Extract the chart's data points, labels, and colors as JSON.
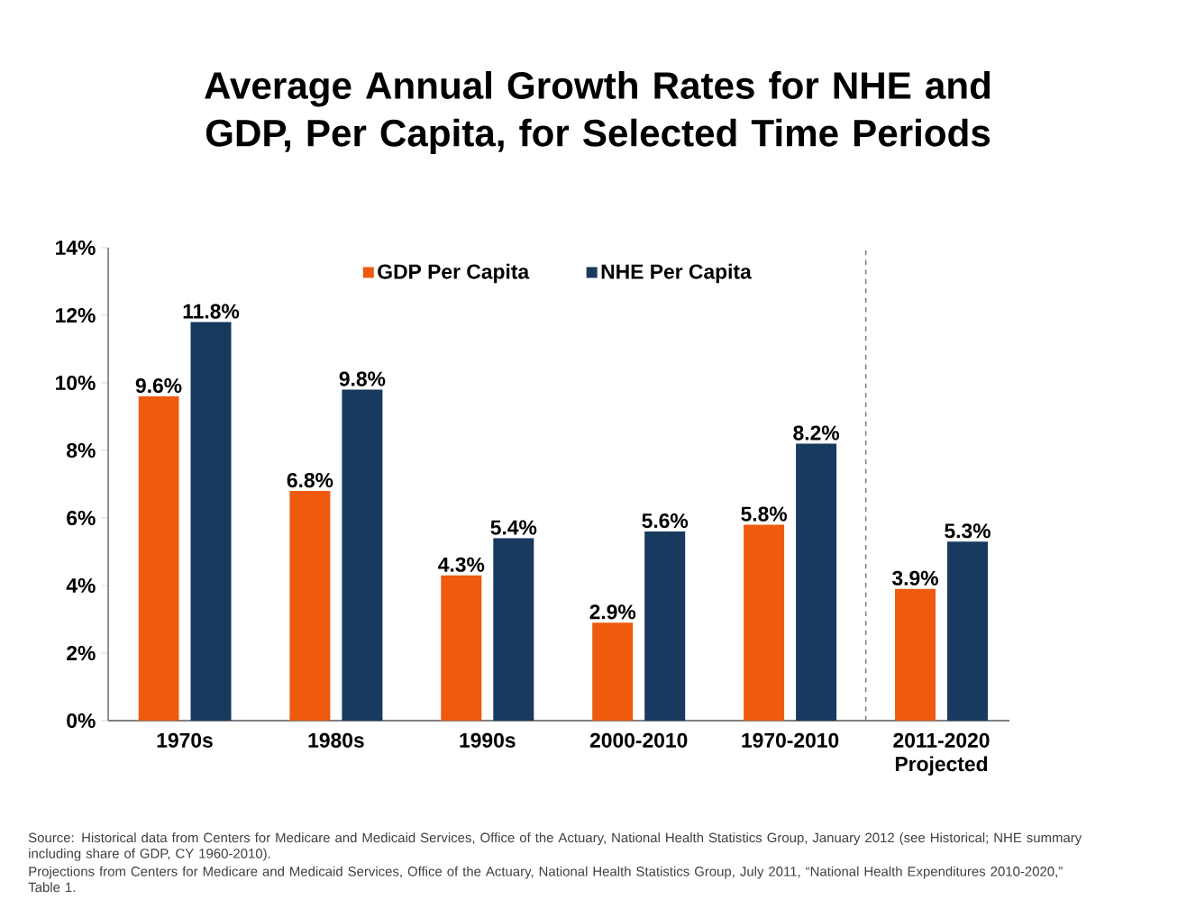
{
  "chart_data": {
    "type": "bar",
    "title": "Average Annual Growth Rates for NHE and GDP, Per Capita, for Selected Time Periods",
    "categories": [
      "1970s",
      "1980s",
      "1990s",
      "2000-2010",
      "1970-2010",
      "2011-2020 Projected"
    ],
    "series": [
      {
        "name": "GDP Per Capita",
        "color": "#ee5a0e",
        "values": [
          9.6,
          6.8,
          4.3,
          2.9,
          5.8,
          3.9
        ],
        "value_labels": [
          "9.6%",
          "6.8%",
          "4.3%",
          "2.9%",
          "5.8%",
          "3.9%"
        ]
      },
      {
        "name": "NHE Per Capita",
        "color": "#173a5e",
        "values": [
          11.8,
          9.8,
          5.4,
          5.6,
          8.2,
          5.3
        ],
        "value_labels": [
          "11.8%",
          "9.8%",
          "5.4%",
          "5.6%",
          "8.2%",
          "5.3%"
        ]
      }
    ],
    "ylim": [
      0,
      14
    ],
    "yticks": [
      {
        "value": 0,
        "label": "0%"
      },
      {
        "value": 2,
        "label": "2%"
      },
      {
        "value": 4,
        "label": "4%"
      },
      {
        "value": 6,
        "label": "6%"
      },
      {
        "value": 8,
        "label": "8%"
      },
      {
        "value": 10,
        "label": "10%"
      },
      {
        "value": 12,
        "label": "12%"
      },
      {
        "value": 14,
        "label": "14%"
      }
    ],
    "legend": "top",
    "grid": false,
    "annotations": [
      "Source: Historical data from Centers for Medicare and Medicaid Services, Office of the Actuary, National Health Statistics Group, January 2012 (see Historical; NHE summary including share of GDP, CY 1960-2010).",
      "Projections from Centers for Medicare and Medicaid Services, Office of the Actuary, National Health Statistics Group, July 2011, “National Health Expenditures 2010-2020,” Table 1."
    ]
  }
}
